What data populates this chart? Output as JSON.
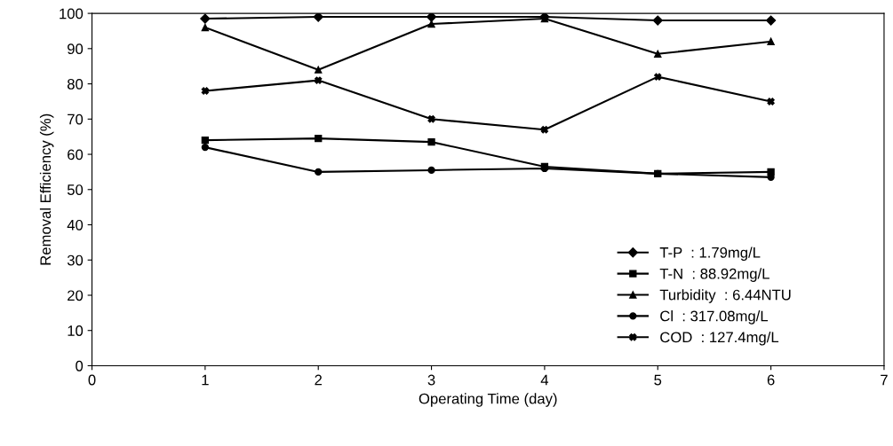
{
  "chart_data": {
    "type": "line",
    "xlabel": "Operating Time (day)",
    "ylabel": "Removal Efficiency (%)",
    "x": [
      1,
      2,
      3,
      4,
      5,
      6
    ],
    "xlim": [
      0,
      7
    ],
    "xticks": [
      0,
      1,
      2,
      3,
      4,
      5,
      6,
      7
    ],
    "ylim": [
      0,
      100
    ],
    "yticks": [
      0,
      10,
      20,
      30,
      40,
      50,
      60,
      70,
      80,
      90,
      100
    ],
    "grid": false,
    "legend": "bottom right",
    "line_style": "solid",
    "series": [
      {
        "name": "T-P  : 1.79mg/L",
        "color": "#000000",
        "marker": "diamond",
        "values": [
          98.5,
          99,
          99,
          99,
          98,
          98
        ]
      },
      {
        "name": "T-N  : 88.92mg/L",
        "color": "#000000",
        "marker": "square",
        "values": [
          64,
          64.5,
          63.5,
          56.5,
          54.5,
          55
        ]
      },
      {
        "name": "Turbidity  : 6.44NTU",
        "color": "#000000",
        "marker": "triangle",
        "values": [
          96,
          84,
          97,
          98.5,
          88.5,
          92
        ]
      },
      {
        "name": "Cl  : 317.08mg/L",
        "color": "#000000",
        "marker": "circle",
        "values": [
          62,
          55,
          55.5,
          56,
          54.5,
          53.5
        ]
      },
      {
        "name": "COD  : 127.4mg/L",
        "color": "#000000",
        "marker": "cross",
        "values": [
          78,
          81,
          70,
          67,
          82,
          75
        ]
      }
    ]
  }
}
